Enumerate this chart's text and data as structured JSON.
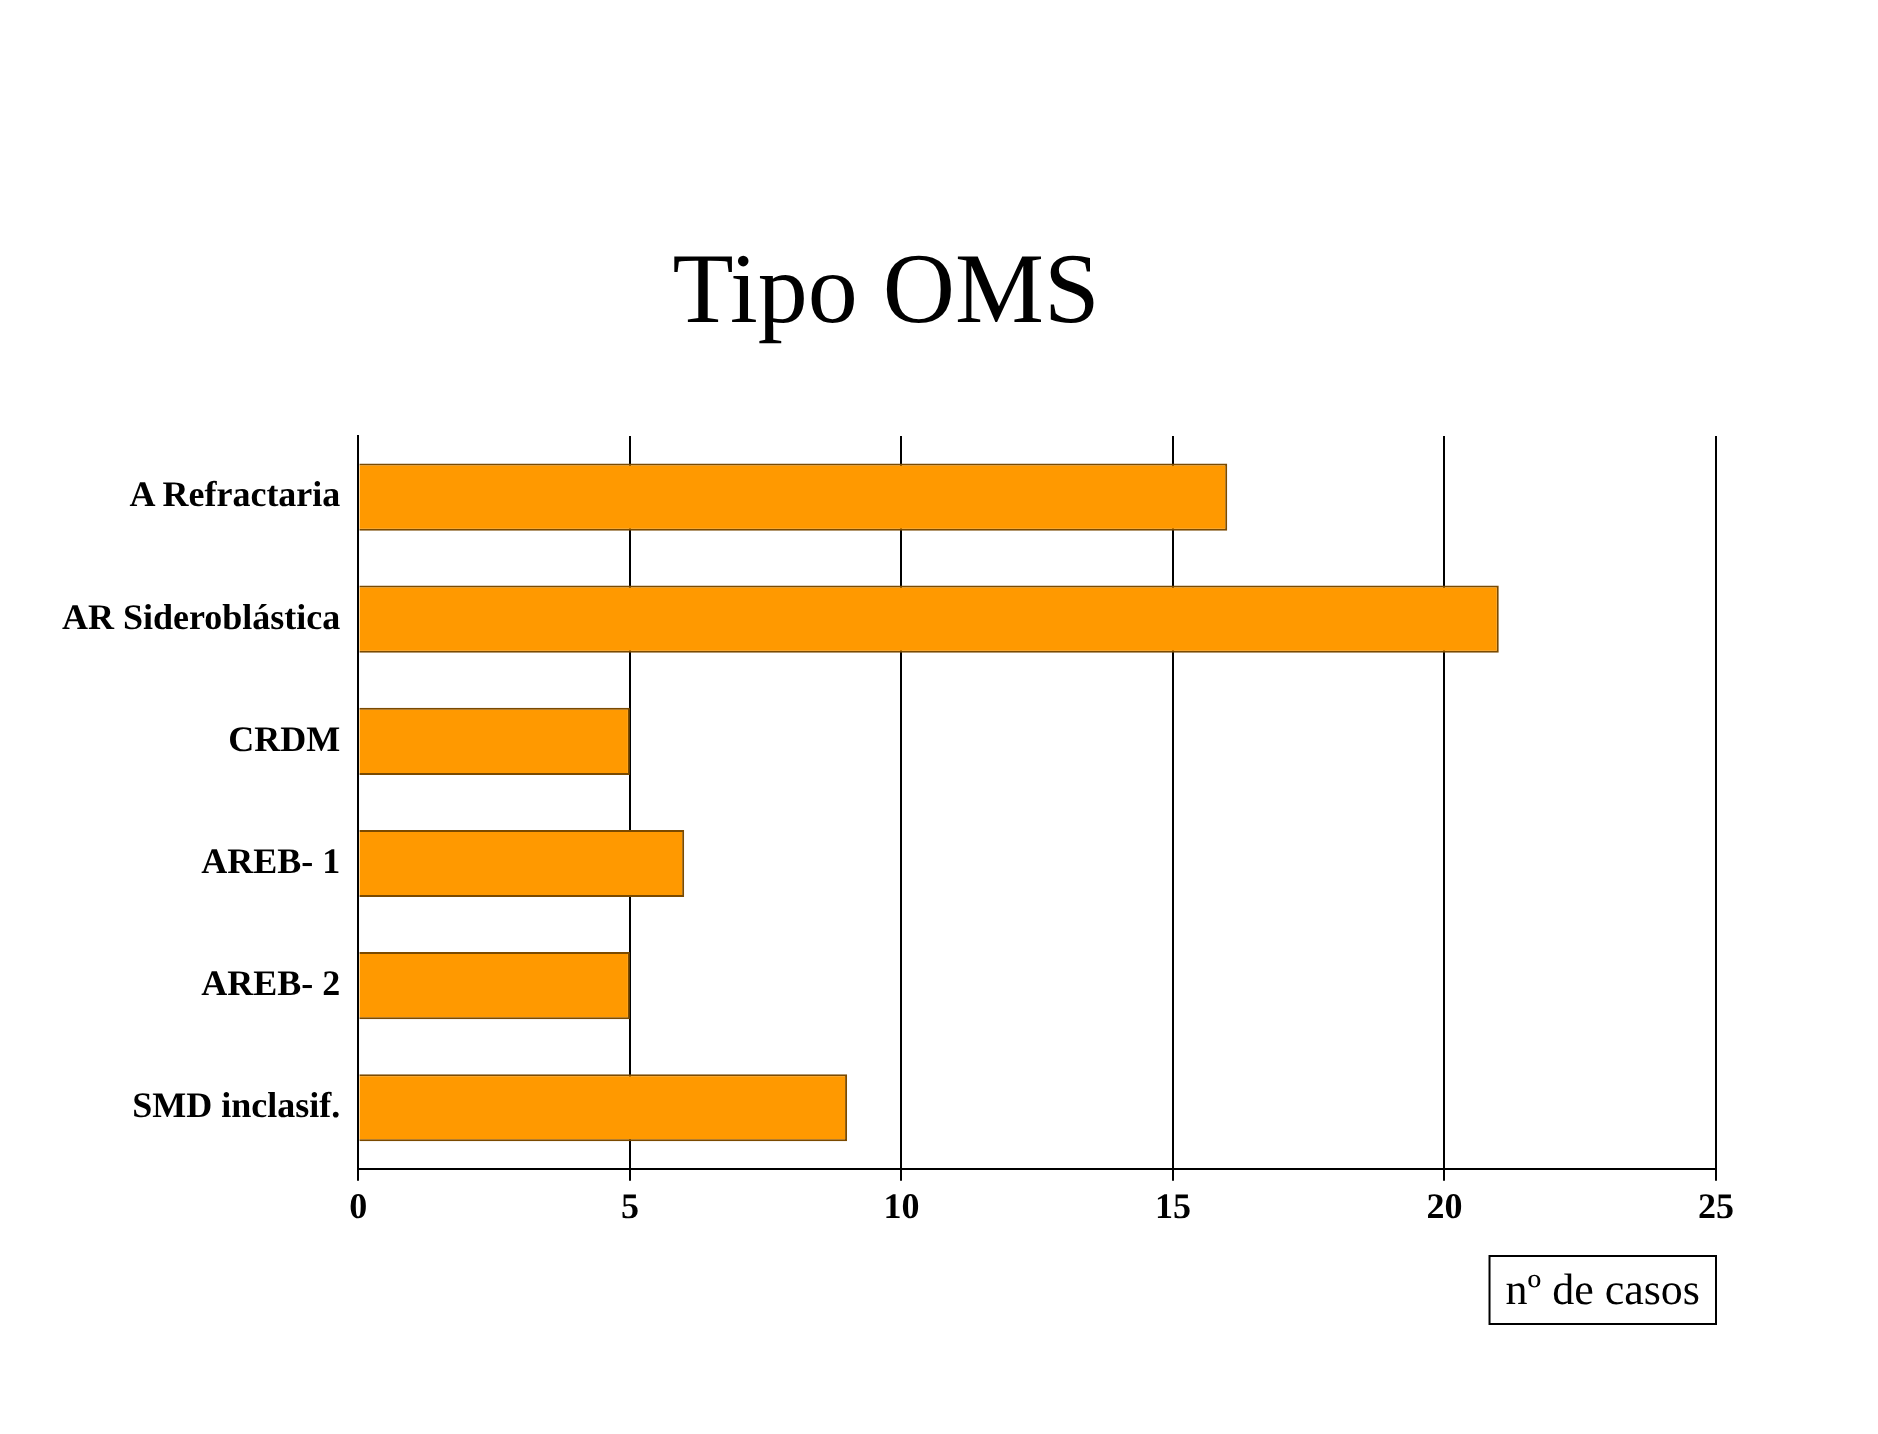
{
  "chart_data": {
    "type": "bar",
    "orientation": "horizontal",
    "title": "Tipo OMS",
    "xlabel": "nº de casos",
    "categories": [
      "A Refractaria",
      "AR Sideroblástica",
      "CRDM",
      "AREB- 1",
      "AREB- 2",
      "SMD inclasif."
    ],
    "values": [
      16,
      21,
      5,
      6,
      5,
      9
    ],
    "color": "#ff9900",
    "xlim": [
      0,
      25
    ],
    "xticks": [
      0,
      5,
      10,
      15,
      20,
      25
    ],
    "grid": "x",
    "legend": false
  }
}
